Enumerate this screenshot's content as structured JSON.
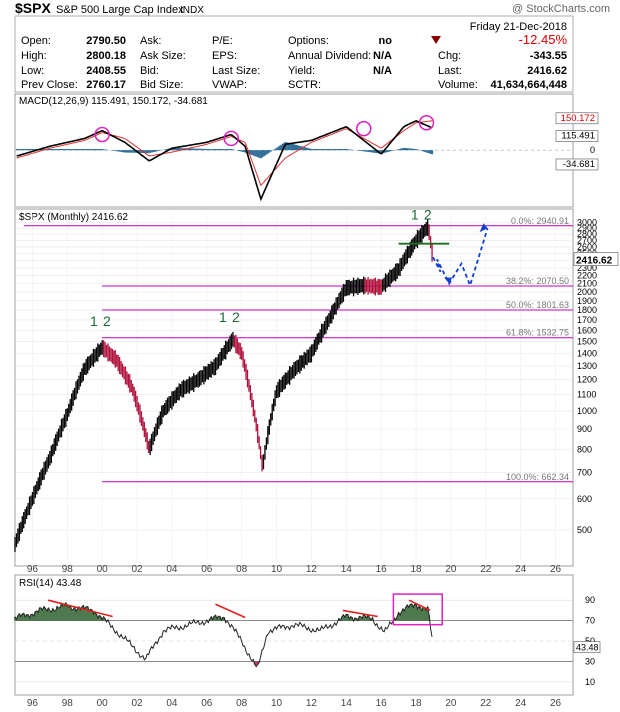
{
  "header": {
    "symbol": "$SPX",
    "name": "S&P 500 Large Cap Index",
    "exchange": "INDX",
    "watermark": "@ StockCharts.com",
    "date": "Friday  21-Dec-2018",
    "pct_change": "-12.45%",
    "fields": {
      "open_label": "Open:",
      "open": "2790.50",
      "high_label": "High:",
      "high": "2800.18",
      "low_label": "Low:",
      "low": "2408.55",
      "prevclose_label": "Prev Close:",
      "prevclose": "2760.17",
      "ask_label": "Ask:",
      "asksize_label": "Ask Size:",
      "bid_label": "Bid:",
      "bidsize_label": "Bid Size:",
      "pe_label": "P/E:",
      "eps_label": "EPS:",
      "lastsize_label": "Last Size:",
      "vwap_label": "VWAP:",
      "options_label": "Options:",
      "options": "no",
      "div_label": "Annual Dividend:",
      "div": "N/A",
      "yield_label": "Yield:",
      "yield": "N/A",
      "sctr_label": "SCTR:",
      "chg_label": "Chg:",
      "chg": "-343.55",
      "last_label": "Last:",
      "last": "2416.62",
      "volume_label": "Volume:",
      "volume": "41,634,664,448"
    }
  },
  "colors": {
    "price_up": "#000000",
    "price_down": "#b0103a",
    "macd_line": "#000000",
    "macd_signal": "#e03030",
    "histogram": "#2f6f99",
    "fib": "#c000c0",
    "annotation": "#1040d0",
    "wave_label": "#1e6b3a",
    "rsi_fill": "#4f7a4f",
    "trendline": "#e02020",
    "circle": "#e020c0"
  },
  "chart_data": [
    {
      "type": "line",
      "panel": "MACD",
      "title": "MACD(12,26,9) 115.491, 150.172, -34.681",
      "legend": [
        "MACD(12,26,9)",
        "115.491",
        "150.172",
        "-34.681"
      ],
      "ylim": [
        -280,
        200
      ],
      "y_ticks": [
        0
      ],
      "right_labels": [
        "150.172",
        "115.491",
        "-34.681"
      ],
      "x_years": [
        1995.1,
        1997,
        1999,
        2000,
        2001.3,
        2002.7,
        2004,
        2006,
        2007.4,
        2008.2,
        2009.1,
        2010.5,
        2012,
        2014,
        2016,
        2017.3,
        2018,
        2018.9
      ],
      "series": [
        {
          "name": "MACD",
          "values": [
            -30,
            20,
            60,
            100,
            40,
            -55,
            10,
            40,
            80,
            20,
            -250,
            30,
            50,
            120,
            -20,
            120,
            150,
            115
          ]
        },
        {
          "name": "Signal",
          "values": [
            -40,
            10,
            50,
            90,
            60,
            -30,
            -10,
            30,
            70,
            40,
            -180,
            -40,
            40,
            110,
            10,
            100,
            140,
            150
          ]
        }
      ]
    },
    {
      "type": "line",
      "panel": "Price",
      "title": "$SPX (Monthly) 2416.62",
      "scale": "log",
      "ylim": [
        420,
        3150
      ],
      "y_ticks": [
        500,
        600,
        700,
        800,
        900,
        1000,
        1100,
        1200,
        1300,
        1400,
        1500,
        1600,
        1700,
        1800,
        1900,
        2000,
        2100,
        2200,
        2300,
        2400,
        2500,
        2600,
        2700,
        2800,
        2900,
        3000
      ],
      "last_value_label": "2416.62",
      "x_years": [
        1995.0,
        1996.0,
        1997.0,
        1998.0,
        1999.0,
        2000.0,
        2000.8,
        2001.7,
        2002.7,
        2003.5,
        2004.5,
        2005.5,
        2006.5,
        2007.5,
        2008.0,
        2008.7,
        2009.2,
        2010.0,
        2011.0,
        2012.0,
        2013.0,
        2014.0,
        2015.0,
        2016.0,
        2017.0,
        2018.0,
        2018.7,
        2018.97
      ],
      "values": [
        460,
        600,
        760,
        980,
        1280,
        1450,
        1350,
        1150,
        800,
        1000,
        1130,
        1200,
        1300,
        1520,
        1400,
        1000,
        720,
        1120,
        1270,
        1400,
        1700,
        2050,
        2080,
        2060,
        2280,
        2700,
        2930,
        2416
      ],
      "fib_levels": [
        {
          "label": "0.0%: 2940.91",
          "value": 2940.91
        },
        {
          "label": "38.2%: 2070.50",
          "value": 2070.5
        },
        {
          "label": "50.0%: 1801.63",
          "value": 1801.63
        },
        {
          "label": "61.8%: 1532.75",
          "value": 1532.75
        },
        {
          "label": "100.0%: 662.34",
          "value": 662.34
        }
      ],
      "wave_labels": [
        "1",
        "2"
      ]
    },
    {
      "type": "line",
      "panel": "RSI",
      "title": "RSI(14) 43.48",
      "ylim": [
        0,
        100
      ],
      "y_ticks": [
        10,
        30,
        50,
        70,
        90
      ],
      "last_value_label": "43.48",
      "x_years": [
        1995.0,
        1996.5,
        1998.0,
        1999.5,
        2000.8,
        2002.5,
        2003.5,
        2005.0,
        2007.0,
        2008.0,
        2008.9,
        2009.5,
        2011.0,
        2012.5,
        2014.0,
        2015.5,
        2016.2,
        2017.0,
        2018.0,
        2018.7,
        2018.97
      ],
      "values": [
        72,
        80,
        84,
        80,
        60,
        32,
        60,
        66,
        74,
        50,
        22,
        60,
        66,
        60,
        74,
        72,
        58,
        78,
        86,
        80,
        43.48
      ]
    }
  ],
  "x_axis": {
    "labels": [
      "96",
      "98",
      "00",
      "02",
      "04",
      "06",
      "08",
      "10",
      "12",
      "14",
      "16",
      "18",
      "20",
      "22",
      "24",
      "26"
    ],
    "years": [
      1996,
      1998,
      2000,
      2002,
      2004,
      2006,
      2008,
      2010,
      2012,
      2014,
      2016,
      2018,
      2020,
      2022,
      2024,
      2026
    ]
  }
}
